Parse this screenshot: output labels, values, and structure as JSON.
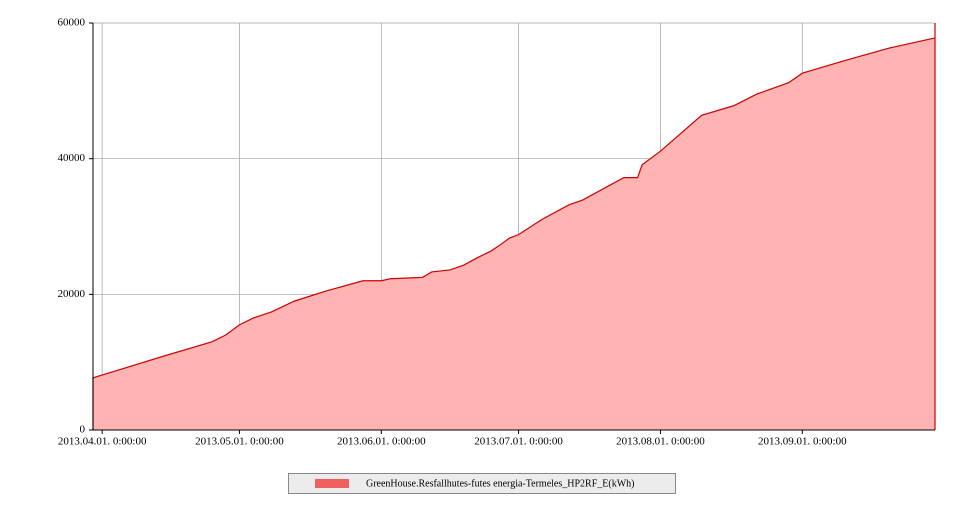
{
  "chart_data": {
    "type": "area",
    "x": [
      "2013-03-30",
      "2013-04-15",
      "2013-04-25",
      "2013-04-28",
      "2013-05-01",
      "2013-05-04",
      "2013-05-08",
      "2013-05-13",
      "2013-05-20",
      "2013-05-28",
      "2013-06-01",
      "2013-06-03",
      "2013-06-10",
      "2013-06-12",
      "2013-06-16",
      "2013-06-19",
      "2013-06-22",
      "2013-06-25",
      "2013-06-27",
      "2013-06-29",
      "2013-07-01",
      "2013-07-06",
      "2013-07-12",
      "2013-07-15",
      "2013-07-24",
      "2013-07-27",
      "2013-07-28",
      "2013-08-01",
      "2013-08-10",
      "2013-08-17",
      "2013-08-22",
      "2013-08-29",
      "2013-09-01",
      "2013-09-10",
      "2013-09-20",
      "2013-09-30"
    ],
    "series": [
      {
        "name": "GreenHouse.Resfallhutes-futes energia-Termeles_HP2RF_E(kWh)",
        "color": "#cc0000",
        "fill": "#ffb3b3",
        "legend_color": "#f06060",
        "values": [
          7700,
          11000,
          13000,
          14000,
          15500,
          16500,
          17400,
          19000,
          20500,
          22000,
          22000,
          22300,
          22500,
          23300,
          23600,
          24300,
          25400,
          26400,
          27300,
          28300,
          28800,
          31000,
          33200,
          33900,
          37200,
          37200,
          39100,
          41100,
          46400,
          47800,
          49500,
          51200,
          52600,
          54400,
          56300,
          57800
        ]
      }
    ],
    "xlim": [
      "2013-03-30",
      "2013-09-30"
    ],
    "xticks": [
      {
        "value": "2013-04-01",
        "label": "2013.04.01. 0:00:00"
      },
      {
        "value": "2013-05-01",
        "label": "2013.05.01. 0:00:00"
      },
      {
        "value": "2013-06-01",
        "label": "2013.06.01. 0:00:00"
      },
      {
        "value": "2013-07-01",
        "label": "2013.07.01. 0:00:00"
      },
      {
        "value": "2013-08-01",
        "label": "2013.08.01. 0:00:00"
      },
      {
        "value": "2013-09-01",
        "label": "2013.09.01. 0:00:00"
      }
    ],
    "ylim": [
      0,
      60000
    ],
    "yticks": [
      0,
      20000,
      40000,
      60000
    ],
    "grid": true,
    "legend": "bottom"
  }
}
